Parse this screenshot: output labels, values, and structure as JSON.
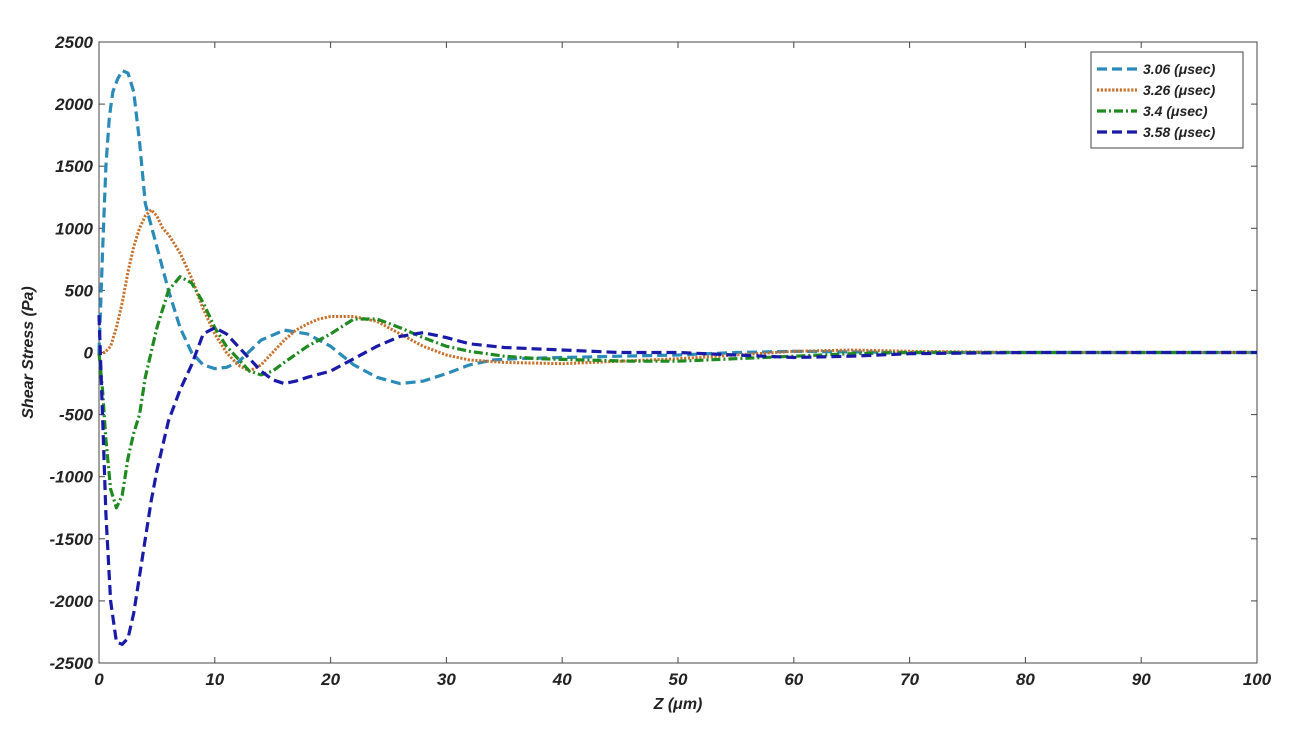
{
  "chart_data": {
    "type": "line",
    "xlabel": "Z (μm)",
    "ylabel": "Shear Stress (Pa)",
    "xlim": [
      0,
      100
    ],
    "ylim": [
      -2500,
      2500
    ],
    "xticks": [
      "0",
      "10",
      "20",
      "30",
      "40",
      "50",
      "60",
      "70",
      "80",
      "90",
      "100"
    ],
    "yticks": [
      "2500",
      "2000",
      "1500",
      "1000",
      "500",
      "0",
      "-500",
      "-1000",
      "-1500",
      "-2000",
      "-2500"
    ],
    "grid": false,
    "legend_position": "top-right",
    "series": [
      {
        "name": "3.06 (μsec)",
        "color": "#2a8ab8",
        "style": "dashed",
        "x": [
          0,
          0.3,
          0.6,
          0.9,
          1.2,
          1.6,
          2.0,
          2.5,
          3.0,
          3.5,
          4.0,
          5.0,
          6.0,
          7.0,
          8.0,
          9.0,
          10.0,
          11.0,
          12.0,
          14.0,
          16.0,
          18.0,
          20.0,
          22.0,
          24.0,
          26.0,
          28.0,
          30.0,
          32.0,
          34.0,
          36.0,
          40.0,
          45.0,
          50.0,
          55.0,
          60.0,
          65.0,
          70.0,
          80.0,
          90.0,
          100.0
        ],
        "y": [
          0,
          800,
          1500,
          1900,
          2100,
          2200,
          2270,
          2250,
          2100,
          1700,
          1200,
          850,
          500,
          200,
          0,
          -100,
          -130,
          -120,
          -80,
          100,
          180,
          150,
          50,
          -100,
          -200,
          -250,
          -230,
          -170,
          -100,
          -60,
          -50,
          -40,
          -30,
          -20,
          0,
          10,
          5,
          0,
          0,
          0,
          0
        ]
      },
      {
        "name": "3.26 (μsec)",
        "color": "#c8702a",
        "style": "dotted",
        "x": [
          0,
          0.5,
          1.0,
          1.5,
          2.0,
          2.5,
          3.0,
          3.5,
          4.0,
          4.5,
          5.0,
          5.5,
          6.0,
          7.0,
          8.0,
          9.0,
          10.0,
          11.0,
          12.0,
          13.0,
          14.0,
          15.0,
          16.0,
          17.0,
          18.0,
          19.0,
          20.0,
          22.0,
          24.0,
          26.0,
          28.0,
          30.0,
          32.0,
          35.0,
          40.0,
          45.0,
          50.0,
          55.0,
          60.0,
          65.0,
          70.0,
          80.0,
          90.0,
          100.0
        ],
        "y": [
          0,
          0,
          50,
          200,
          400,
          650,
          850,
          1000,
          1100,
          1150,
          1100,
          1000,
          950,
          800,
          600,
          350,
          150,
          0,
          -100,
          -150,
          -100,
          0,
          100,
          180,
          230,
          270,
          290,
          290,
          250,
          150,
          50,
          -20,
          -60,
          -80,
          -90,
          -70,
          -50,
          -20,
          10,
          20,
          10,
          0,
          0,
          0
        ]
      },
      {
        "name": "3.4 (μsec)",
        "color": "#1f8a1f",
        "style": "dashdot",
        "x": [
          0,
          0.3,
          0.6,
          1.0,
          1.5,
          2.0,
          2.5,
          3.0,
          3.5,
          4.0,
          4.5,
          5.0,
          6.0,
          7.0,
          8.0,
          9.0,
          10.0,
          11.0,
          12.0,
          13.0,
          14.0,
          15.0,
          16.0,
          18.0,
          20.0,
          22.0,
          24.0,
          26.0,
          28.0,
          30.0,
          32.0,
          35.0,
          38.0,
          42.0,
          46.0,
          50.0,
          55.0,
          60.0,
          65.0,
          70.0,
          80.0,
          90.0,
          100.0
        ],
        "y": [
          0,
          -300,
          -700,
          -1100,
          -1250,
          -1150,
          -850,
          -650,
          -500,
          -200,
          0,
          200,
          500,
          610,
          560,
          400,
          200,
          50,
          -50,
          -150,
          -180,
          -150,
          -80,
          50,
          150,
          270,
          270,
          200,
          120,
          50,
          10,
          -30,
          -50,
          -60,
          -70,
          -70,
          -50,
          -30,
          -10,
          0,
          0,
          0,
          0
        ]
      },
      {
        "name": "3.58 (μsec)",
        "color": "#1a1aa8",
        "style": "dashed",
        "x": [
          0,
          0.3,
          0.6,
          1.0,
          1.5,
          2.0,
          2.5,
          3.0,
          3.5,
          4.0,
          4.5,
          5.0,
          5.5,
          6.0,
          7.0,
          8.0,
          9.0,
          10.0,
          11.0,
          12.0,
          13.0,
          14.0,
          15.0,
          16.0,
          17.0,
          18.0,
          20.0,
          22.0,
          24.0,
          26.0,
          28.0,
          30.0,
          32.0,
          35.0,
          40.0,
          45.0,
          50.0,
          55.0,
          60.0,
          65.0,
          70.0,
          80.0,
          90.0,
          100.0
        ],
        "y": [
          300,
          -500,
          -1300,
          -2000,
          -2330,
          -2350,
          -2300,
          -2100,
          -1800,
          -1500,
          -1200,
          -950,
          -750,
          -550,
          -300,
          -100,
          150,
          200,
          150,
          50,
          -50,
          -150,
          -220,
          -250,
          -230,
          -200,
          -150,
          -50,
          50,
          130,
          160,
          120,
          70,
          40,
          20,
          0,
          0,
          -20,
          -40,
          -30,
          -10,
          0,
          0,
          0
        ]
      }
    ]
  }
}
